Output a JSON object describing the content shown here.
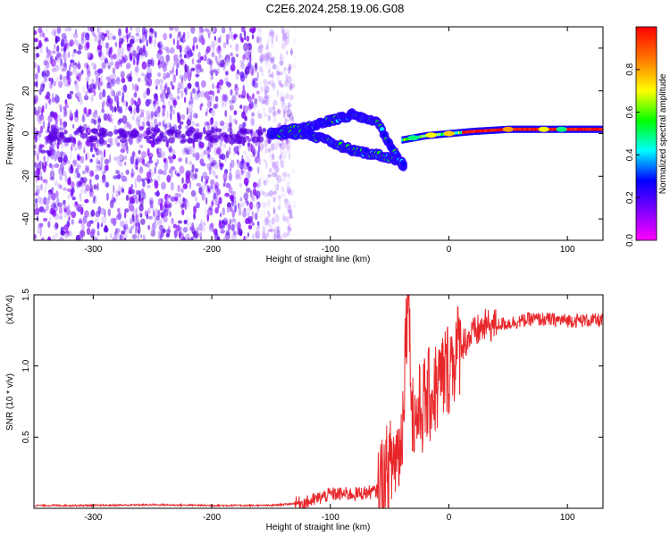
{
  "title": "C2E6.2024.258.19.06.G08",
  "chart_data": [
    {
      "type": "heatmap",
      "xlabel": "Height of straight line (km)",
      "ylabel": "Frequency (Hz)",
      "xlim": [
        -350,
        130
      ],
      "ylim": [
        -50,
        50
      ],
      "xticks": [
        -300,
        -200,
        -100,
        0,
        100
      ],
      "yticks": [
        -40,
        -20,
        0,
        20,
        40
      ],
      "colorbar": {
        "label": "Normalized spectral amplitude",
        "range": [
          0.0,
          1.0
        ],
        "ticks": [
          "0.0",
          "0.2",
          "0.4",
          "0.6",
          "0.8"
        ],
        "colormap": [
          "#ff00ff",
          "#7f00ff",
          "#0000ff",
          "#00ffff",
          "#00ff00",
          "#ffff00",
          "#ff7f00",
          "#ff0000"
        ]
      },
      "features": {
        "noise_region_x": [
          -350,
          -130
        ],
        "upper_branch": {
          "x": [
            -150,
            -120,
            -100,
            -80,
            -60,
            -45,
            -38
          ],
          "y": [
            0,
            3,
            6,
            9,
            5,
            -10,
            -16
          ]
        },
        "lower_branch": {
          "x": [
            -150,
            -120,
            -100,
            -80,
            -60,
            -45,
            -38
          ],
          "y": [
            0,
            0,
            -4,
            -8,
            -10,
            -12,
            -14
          ]
        },
        "carrier_line": {
          "x": [
            -40,
            -20,
            0,
            20,
            50,
            80,
            100,
            130
          ],
          "y": [
            -3,
            -1,
            0,
            1,
            2,
            2,
            2,
            2
          ]
        }
      }
    },
    {
      "type": "line",
      "xlabel": "Height of straight line (km)",
      "ylabel": "SNR (10 * v/v)",
      "y_multiplier": "(x10^4)",
      "xlim": [
        -350,
        130
      ],
      "ylim": [
        0,
        1.5
      ],
      "xticks": [
        -300,
        -200,
        -100,
        0,
        100
      ],
      "yticks": [
        "0.5",
        "1.0",
        "1.5"
      ],
      "series": [
        {
          "color": "#e8272a",
          "x": [
            -350,
            -300,
            -250,
            -200,
            -150,
            -120,
            -100,
            -80,
            -60,
            -50,
            -40,
            -35,
            -30,
            -20,
            -10,
            0,
            10,
            20,
            30,
            50,
            70,
            100,
            130
          ],
          "y": [
            0.02,
            0.02,
            0.025,
            0.02,
            0.02,
            0.04,
            0.1,
            0.1,
            0.12,
            0.28,
            0.45,
            1.5,
            0.6,
            0.75,
            0.85,
            1.0,
            1.15,
            1.22,
            1.28,
            1.3,
            1.33,
            1.32,
            1.32
          ]
        }
      ]
    }
  ]
}
